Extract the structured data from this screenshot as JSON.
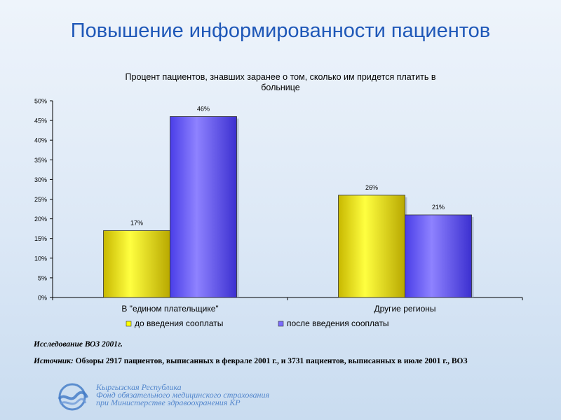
{
  "slide": {
    "title": "Повышение информированности пациентов"
  },
  "chart_data": {
    "type": "bar",
    "title": "Процент пациентов, знавших заранее о том, сколько им придется платить в больнице",
    "title_lines": [
      "Процент пациентов, знавших заранее о том, сколько им придется платить в",
      "больнице"
    ],
    "categories": [
      "В \"едином плательщике\"",
      "Другие регионы"
    ],
    "series": [
      {
        "name": "до введения сооплаты",
        "values": [
          17,
          26
        ],
        "labels": [
          "17%",
          "26%"
        ],
        "color": "#ffff00"
      },
      {
        "name": "после введения сооплаты",
        "values": [
          46,
          21
        ],
        "labels": [
          "46%",
          "21%"
        ],
        "color": "#7b6cff"
      }
    ],
    "ylim": [
      0,
      50
    ],
    "yticks": [
      "0%",
      "5%",
      "10%",
      "15%",
      "20%",
      "25%",
      "30%",
      "35%",
      "40%",
      "45%",
      "50%"
    ],
    "xlabel": "",
    "ylabel": "",
    "grid": false,
    "legend": "bottom"
  },
  "notes": {
    "study": "Исследование ВОЗ 2001г.",
    "source_label": "Источник:",
    "source_text": " Обзоры 2917 пациентов, выписанных в феврале 2001 г., и 3731 пациентов, выписанных в июле 2001 г., ВОЗ"
  },
  "footer": {
    "logo_icon": "wave-logo-icon",
    "line1": "Кыргызская Республика",
    "line2": "Фонд обязательного медицинского страхования",
    "line3": "при Министерстве здравоохранения КР"
  }
}
